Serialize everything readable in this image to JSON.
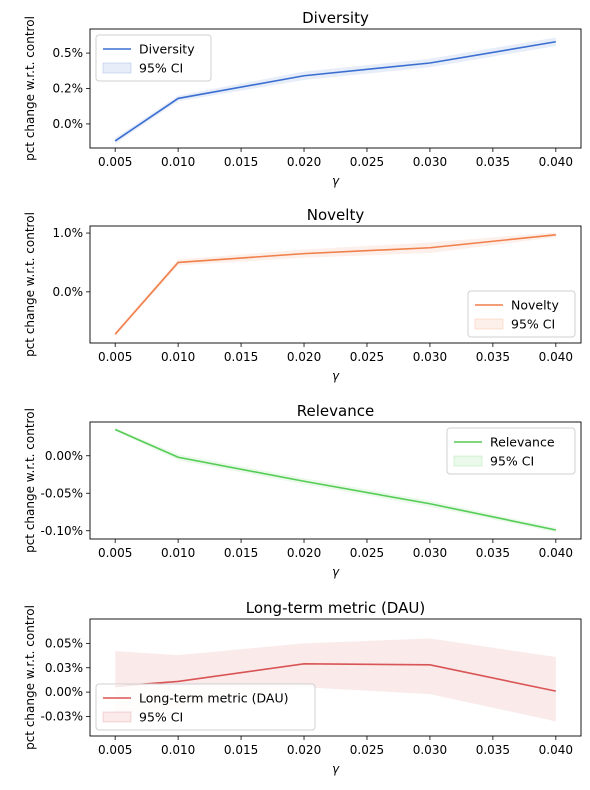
{
  "colors": {
    "diversity": "#3a6fd1",
    "novelty": "#f07f4a",
    "relevance": "#55cc55",
    "dau": "#d95454"
  },
  "chart_data": [
    {
      "type": "line",
      "title": "Diversity",
      "xlabel": "γ",
      "ylabel": "pct change w.r.t. control",
      "x": [
        0.005,
        0.01,
        0.02,
        0.03,
        0.04
      ],
      "x_ticks": [
        "0.005",
        "0.010",
        "0.015",
        "0.020",
        "0.025",
        "0.030",
        "0.035",
        "0.040"
      ],
      "x_tick_values": [
        0.005,
        0.01,
        0.015,
        0.02,
        0.025,
        0.03,
        0.035,
        0.04
      ],
      "xlim": [
        0.003,
        0.042
      ],
      "ylim": [
        -0.0017,
        0.0067
      ],
      "y_ticks": [
        "0.0%",
        "0.2%",
        "0.5%"
      ],
      "y_tick_values": [
        0.0,
        0.0025,
        0.005
      ],
      "series": [
        {
          "name": "Diversity",
          "values": [
            -0.0012,
            0.0018,
            0.0034,
            0.0043,
            0.0058
          ],
          "ci_low": [
            -0.0014,
            0.0016,
            0.0031,
            0.004,
            0.0055
          ],
          "ci_high": [
            -0.001,
            0.002,
            0.0037,
            0.0046,
            0.0061
          ]
        }
      ],
      "legend": {
        "entries": [
          "Diversity",
          "95% CI"
        ],
        "position": "upper-left"
      }
    },
    {
      "type": "line",
      "title": "Novelty",
      "xlabel": "γ",
      "ylabel": "pct change w.r.t. control",
      "x": [
        0.005,
        0.01,
        0.02,
        0.03,
        0.04
      ],
      "x_ticks": [
        "0.005",
        "0.010",
        "0.015",
        "0.020",
        "0.025",
        "0.030",
        "0.035",
        "0.040"
      ],
      "x_tick_values": [
        0.005,
        0.01,
        0.015,
        0.02,
        0.025,
        0.03,
        0.035,
        0.04
      ],
      "xlim": [
        0.003,
        0.042
      ],
      "ylim": [
        -0.0087,
        0.0112
      ],
      "y_ticks": [
        "0.0%",
        "1.0%"
      ],
      "y_tick_values": [
        0.0,
        0.01
      ],
      "series": [
        {
          "name": "Novelty",
          "values": [
            -0.0072,
            0.005,
            0.0065,
            0.0075,
            0.0097
          ],
          "ci_low": [
            -0.0076,
            0.0045,
            0.0058,
            0.0066,
            0.0093
          ],
          "ci_high": [
            -0.0068,
            0.0055,
            0.0072,
            0.0084,
            0.0101
          ]
        }
      ],
      "legend": {
        "entries": [
          "Novelty",
          "95% CI"
        ],
        "position": "lower-right"
      }
    },
    {
      "type": "line",
      "title": "Relevance",
      "xlabel": "γ",
      "ylabel": "pct change w.r.t. control",
      "x": [
        0.005,
        0.01,
        0.02,
        0.03,
        0.04
      ],
      "x_ticks": [
        "0.005",
        "0.010",
        "0.015",
        "0.020",
        "0.025",
        "0.030",
        "0.035",
        "0.040"
      ],
      "x_tick_values": [
        0.005,
        0.01,
        0.015,
        0.02,
        0.025,
        0.03,
        0.035,
        0.04
      ],
      "xlim": [
        0.003,
        0.042
      ],
      "ylim": [
        -0.00111,
        0.00045
      ],
      "y_ticks": [
        "0.00%",
        "-0.05%",
        "-0.10%"
      ],
      "y_tick_values": [
        0.0,
        -0.0005,
        -0.001
      ],
      "series": [
        {
          "name": "Relevance",
          "values": [
            0.00035,
            -2e-05,
            -0.00034,
            -0.00064,
            -0.00099
          ],
          "ci_low": [
            0.00033,
            -6e-05,
            -0.00038,
            -0.00068,
            -0.00102
          ],
          "ci_high": [
            0.00037,
            2e-05,
            -0.0003,
            -0.0006,
            -0.00096
          ]
        }
      ],
      "legend": {
        "entries": [
          "Relevance",
          "95% CI"
        ],
        "position": "upper-right"
      }
    },
    {
      "type": "line",
      "title": "Long-term metric (DAU)",
      "xlabel": "γ",
      "ylabel": "pct change w.r.t. control",
      "x": [
        0.005,
        0.01,
        0.02,
        0.03,
        0.04
      ],
      "x_ticks": [
        "0.005",
        "0.010",
        "0.015",
        "0.020",
        "0.025",
        "0.030",
        "0.035",
        "0.040"
      ],
      "x_tick_values": [
        0.005,
        0.01,
        0.015,
        0.02,
        0.025,
        0.03,
        0.035,
        0.04
      ],
      "xlim": [
        0.003,
        0.042
      ],
      "ylim": [
        -0.00045,
        0.00075
      ],
      "y_ticks": [
        "0.05%",
        "0.03%",
        "0.00%",
        "-0.03%"
      ],
      "y_tick_values": [
        0.0005,
        0.00025,
        0.0,
        -0.00025
      ],
      "series": [
        {
          "name": "Long-term metric (DAU)",
          "values": [
            6e-05,
            0.00011,
            0.00029,
            0.00028,
            1e-05
          ],
          "ci_low": [
            -0.00022,
            -0.00016,
            5e-05,
            -2e-05,
            -0.0003
          ],
          "ci_high": [
            0.00042,
            0.00038,
            0.0005,
            0.00055,
            0.00036
          ]
        }
      ],
      "legend": {
        "entries": [
          "Long-term metric (DAU)",
          "95% CI"
        ],
        "position": "lower-left"
      }
    }
  ]
}
